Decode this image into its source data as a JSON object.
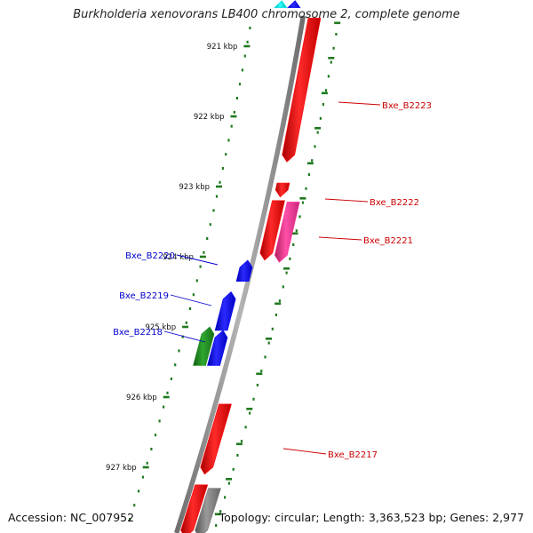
{
  "title": "Burkholderia xenovorans LB400 chromosome 2, complete genome",
  "footer": {
    "accession": "Accession: NC_007952",
    "summary": "Topology: circular; Length: 3,363,523 bp; Genes: 2,977"
  },
  "colors": {
    "backbone": "#8a8a8a",
    "ruler": "#1e7a1e",
    "forward_gene": "#ff0000",
    "forward_gene_alt": "#ff3399",
    "reverse_gene": "#0000ff",
    "reverse_gene_alt": "#228b22",
    "other_gene": "#7a7a7a",
    "edge_gene": "#00e0e0",
    "forward_label": "#cc0000",
    "reverse_label": "#0000cc"
  },
  "ruler": {
    "unit": "kbp",
    "ticks": [
      {
        "label": "921 kbp",
        "kbp": 921
      },
      {
        "label": "922 kbp",
        "kbp": 922
      },
      {
        "label": "923 kbp",
        "kbp": 923
      },
      {
        "label": "924 kbp",
        "kbp": 924
      },
      {
        "label": "925 kbp",
        "kbp": 925
      },
      {
        "label": "926 kbp",
        "kbp": 926
      },
      {
        "label": "927 kbp",
        "kbp": 927
      }
    ]
  },
  "genes": [
    {
      "id": "edge-reverse-1",
      "label": "",
      "strand": "reverse",
      "color_key": "edge_gene",
      "start_kbp": 920.35,
      "end_kbp": 920.45
    },
    {
      "id": "edge-reverse-2",
      "label": "",
      "strand": "reverse",
      "color_key": "reverse_gene",
      "start_kbp": 920.35,
      "end_kbp": 920.45
    },
    {
      "id": "Bxe_B2223",
      "label": "Bxe_B2223",
      "strand": "forward",
      "color_key": "forward_gene",
      "start_kbp": 920.6,
      "end_kbp": 922.65
    },
    {
      "id": "Bxe_B2222",
      "label": "Bxe_B2222",
      "strand": "forward",
      "color_key": "forward_gene",
      "start_kbp": 922.95,
      "end_kbp": 923.15
    },
    {
      "id": "Bxe_B2221-a",
      "label": "",
      "strand": "forward",
      "color_key": "forward_gene",
      "start_kbp": 923.2,
      "end_kbp": 924.05
    },
    {
      "id": "Bxe_B2221",
      "label": "Bxe_B2221",
      "strand": "forward",
      "color_key": "forward_gene_alt",
      "start_kbp": 923.22,
      "end_kbp": 924.08
    },
    {
      "id": "Bxe_B2220",
      "label": "Bxe_B2220",
      "strand": "reverse",
      "color_key": "reverse_gene",
      "start_kbp": 924.05,
      "end_kbp": 924.35
    },
    {
      "id": "Bxe_B2219",
      "label": "Bxe_B2219",
      "strand": "reverse",
      "color_key": "reverse_gene",
      "start_kbp": 924.5,
      "end_kbp": 925.05
    },
    {
      "id": "Bxe_B2218-b",
      "label": "",
      "strand": "reverse",
      "color_key": "reverse_gene_alt",
      "start_kbp": 925.0,
      "end_kbp": 925.55
    },
    {
      "id": "Bxe_B2218",
      "label": "Bxe_B2218",
      "strand": "reverse",
      "color_key": "reverse_gene",
      "start_kbp": 925.05,
      "end_kbp": 925.55
    },
    {
      "id": "Bxe_B2217",
      "label": "Bxe_B2217",
      "strand": "forward",
      "color_key": "forward_gene",
      "start_kbp": 926.1,
      "end_kbp": 927.1
    },
    {
      "id": "next-forward",
      "label": "",
      "strand": "forward",
      "color_key": "forward_gene",
      "start_kbp": 927.25,
      "end_kbp": 928.0
    },
    {
      "id": "next-other",
      "label": "",
      "strand": "forward",
      "color_key": "other_gene",
      "start_kbp": 927.3,
      "end_kbp": 928.0
    }
  ]
}
